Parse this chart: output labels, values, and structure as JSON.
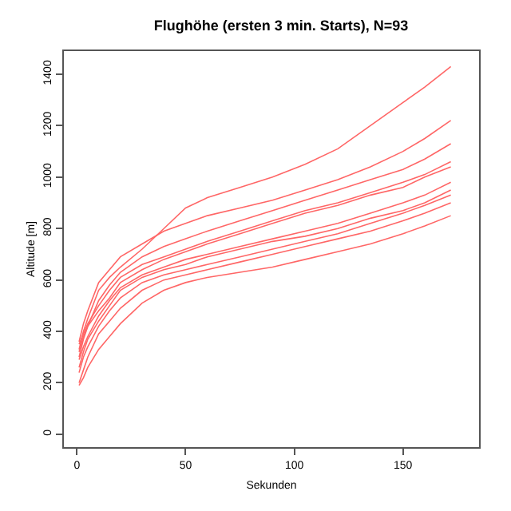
{
  "chart_data": {
    "type": "line",
    "title": "Flughöhe (ersten 3 min. Starts), N=93",
    "xlabel": "Sekunden",
    "ylabel": "Altitude [m]",
    "x": [
      1,
      3,
      5,
      10,
      15,
      20,
      30,
      40,
      50,
      60,
      75,
      90,
      105,
      120,
      135,
      150,
      160,
      172
    ],
    "xlim": [
      -6,
      185
    ],
    "xticks": [
      0,
      50,
      100,
      150
    ],
    "ylim": [
      -50,
      1490
    ],
    "yticks": [
      0,
      200,
      400,
      600,
      800,
      1000,
      1200,
      1400
    ],
    "grid": false,
    "marker": "none",
    "line_style": "solid",
    "series": [
      {
        "color": "#ff6666",
        "values": [
          330,
          400,
          450,
          560,
          610,
          650,
          720,
          800,
          880,
          920,
          960,
          1000,
          1050,
          1110,
          1200,
          1290,
          1350,
          1430
        ]
      },
      {
        "color": "#ff6666",
        "values": [
          360,
          430,
          480,
          590,
          640,
          690,
          740,
          790,
          820,
          850,
          880,
          910,
          950,
          990,
          1040,
          1100,
          1150,
          1220
        ]
      },
      {
        "color": "#ff6666",
        "values": [
          300,
          370,
          420,
          520,
          580,
          630,
          690,
          730,
          760,
          790,
          830,
          870,
          910,
          950,
          990,
          1030,
          1070,
          1130
        ]
      },
      {
        "color": "#ff6666",
        "values": [
          350,
          390,
          430,
          500,
          560,
          610,
          660,
          690,
          720,
          750,
          790,
          830,
          870,
          900,
          940,
          980,
          1010,
          1060
        ]
      },
      {
        "color": "#ff6666",
        "values": [
          290,
          340,
          380,
          460,
          520,
          570,
          620,
          650,
          680,
          700,
          730,
          760,
          790,
          820,
          860,
          900,
          930,
          980
        ]
      },
      {
        "color": "#ff6666",
        "values": [
          240,
          300,
          340,
          420,
          480,
          530,
          590,
          620,
          640,
          660,
          690,
          720,
          750,
          780,
          820,
          860,
          890,
          930
        ]
      },
      {
        "color": "#ff6666",
        "values": [
          200,
          250,
          300,
          390,
          440,
          490,
          560,
          600,
          620,
          640,
          670,
          700,
          730,
          760,
          790,
          830,
          860,
          900
        ]
      },
      {
        "color": "#ff6666",
        "values": [
          190,
          220,
          260,
          330,
          380,
          430,
          510,
          560,
          590,
          610,
          630,
          650,
          680,
          710,
          740,
          780,
          810,
          850
        ]
      },
      {
        "color": "#ff6666",
        "values": [
          260,
          320,
          370,
          440,
          500,
          560,
          610,
          640,
          660,
          690,
          720,
          750,
          770,
          800,
          840,
          870,
          900,
          950
        ]
      },
      {
        "color": "#ff6666",
        "values": [
          320,
          380,
          420,
          480,
          530,
          590,
          640,
          680,
          710,
          740,
          780,
          820,
          860,
          890,
          930,
          960,
          1000,
          1040
        ]
      }
    ]
  }
}
